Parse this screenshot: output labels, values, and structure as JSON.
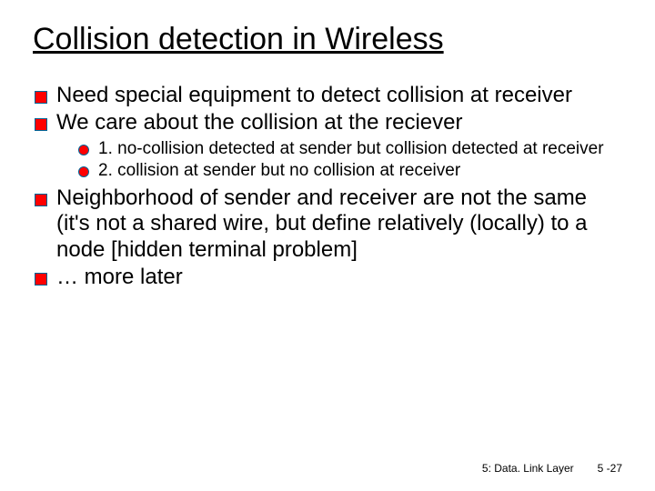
{
  "title": "Collision detection in Wireless",
  "bullets": {
    "b1": "Need special equipment to detect collision at receiver",
    "b2": "We care about the collision at the reciever",
    "b2_sub": {
      "s1": "1. no-collision detected at sender but collision detected at receiver",
      "s2": "2. collision at sender but no collision at receiver"
    },
    "b3": "Neighborhood of sender and receiver are not the same (it's not a shared wire, but define relatively (locally) to a node [hidden terminal problem]",
    "b4": "… more later"
  },
  "footer": {
    "chapter": "5: Data. Link Layer",
    "page": "5 -27"
  },
  "style": {
    "title_fontsize": 34,
    "title_color": "#000000",
    "body_fontsize": 24,
    "sub_fontsize": 19,
    "bullet_square_fill": "#ff0000",
    "bullet_square_border": "#006699",
    "bullet_circle_fill": "#ff0000",
    "bullet_circle_border": "#006699",
    "background_color": "#ffffff",
    "font_family": "Comic Sans MS",
    "footer_fontsize": 12
  }
}
